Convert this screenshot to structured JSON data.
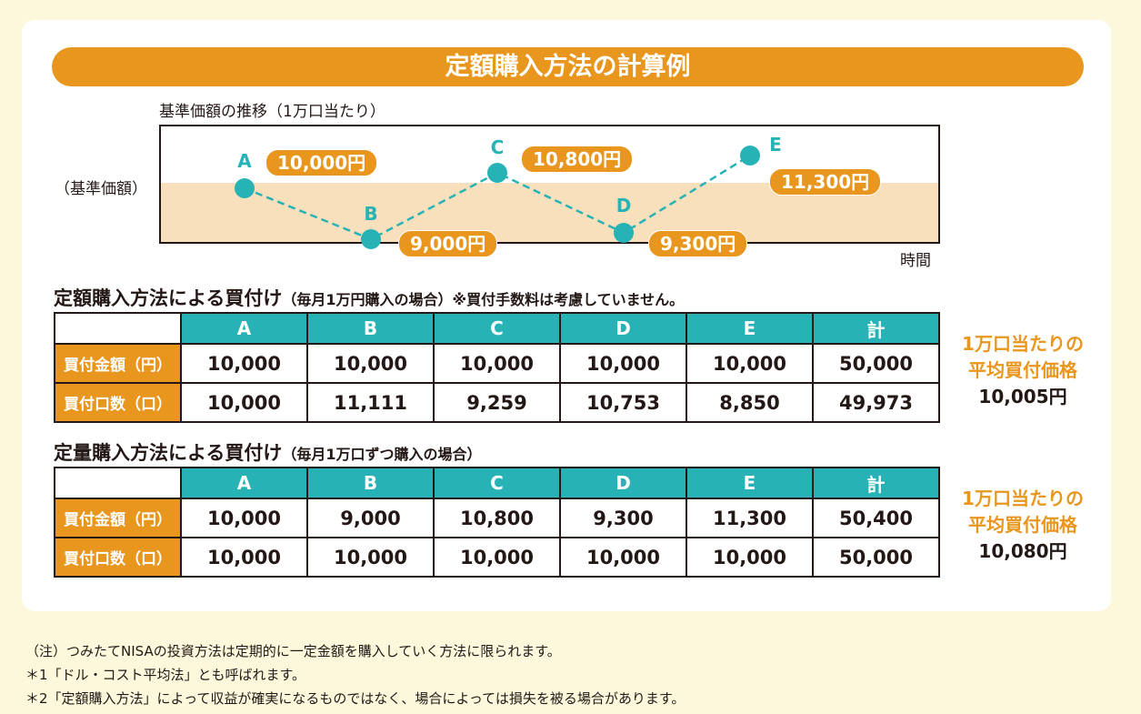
{
  "title": "定額購入方法の計算例",
  "chart": {
    "caption": "基準価額の推移（1万口当たり）",
    "ylabel": "（基準価額）",
    "xlabel": "時間",
    "points": [
      {
        "label": "A",
        "price": "10,000円",
        "value": 10000
      },
      {
        "label": "B",
        "price": "9,000円",
        "value": 9000
      },
      {
        "label": "C",
        "price": "10,800円",
        "value": 10800
      },
      {
        "label": "D",
        "price": "9,300円",
        "value": 9300
      },
      {
        "label": "E",
        "price": "11,300円",
        "value": 11300
      }
    ],
    "colors": {
      "line": "#27b3b5",
      "pill": "#e8961e",
      "band": "#f9e0bc"
    }
  },
  "table1": {
    "heading": "定額購入方法による買付け",
    "heading_note": "（毎月1万円購入の場合）※買付手数料は考慮していません。",
    "columns": [
      "A",
      "B",
      "C",
      "D",
      "E",
      "計"
    ],
    "rows": [
      {
        "label": "買付金額（円）",
        "values": [
          "10,000",
          "10,000",
          "10,000",
          "10,000",
          "10,000",
          "50,000"
        ]
      },
      {
        "label": "買付口数（口）",
        "values": [
          "10,000",
          "11,111",
          "9,259",
          "10,753",
          "8,850",
          "49,973"
        ]
      }
    ],
    "avg_label1": "1万口当たりの",
    "avg_label2": "平均買付価格",
    "avg_value": "10,005円"
  },
  "table2": {
    "heading": "定量購入方法による買付け",
    "heading_note": "（毎月1万口ずつ購入の場合）",
    "columns": [
      "A",
      "B",
      "C",
      "D",
      "E",
      "計"
    ],
    "rows": [
      {
        "label": "買付金額（円）",
        "values": [
          "10,000",
          "9,000",
          "10,800",
          "9,300",
          "11,300",
          "50,400"
        ]
      },
      {
        "label": "買付口数（口）",
        "values": [
          "10,000",
          "10,000",
          "10,000",
          "10,000",
          "10,000",
          "50,000"
        ]
      }
    ],
    "avg_label1": "1万口当たりの",
    "avg_label2": "平均買付価格",
    "avg_value": "10,080円"
  },
  "notes": [
    "（注）つみたてNISAの投資方法は定期的に一定金額を購入していく方法に限られます。",
    "＊1「ドル・コスト平均法」とも呼ばれます。",
    "＊2「定額購入方法」によって収益が確実になるものではなく、場合によっては損失を被る場合があります。"
  ]
}
